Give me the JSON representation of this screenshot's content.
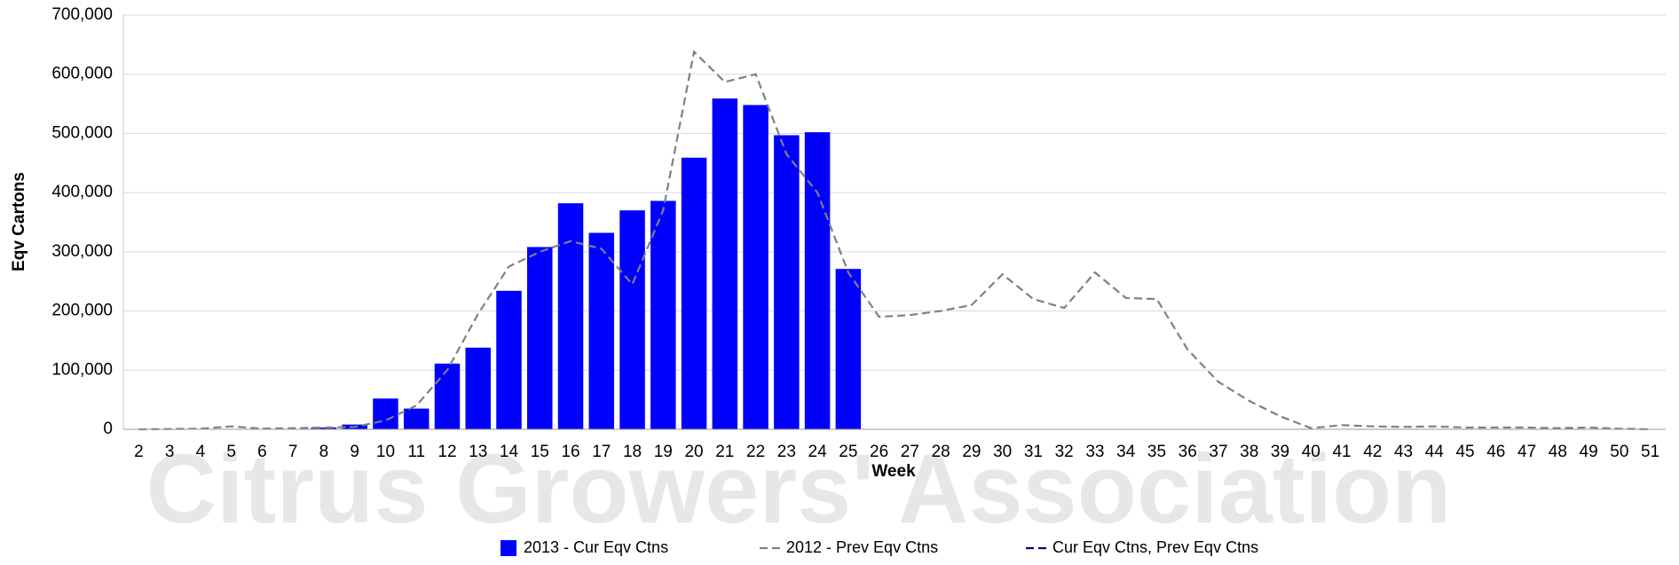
{
  "chart_data": {
    "type": "bar",
    "watermark": "Citrus Growers' Association",
    "x_label": "Week",
    "y_label": "Eqv Cartons",
    "categories": [
      "2",
      "3",
      "4",
      "5",
      "6",
      "7",
      "8",
      "9",
      "10",
      "11",
      "12",
      "13",
      "14",
      "15",
      "16",
      "17",
      "18",
      "19",
      "20",
      "21",
      "22",
      "23",
      "24",
      "25",
      "26",
      "27",
      "28",
      "29",
      "30",
      "31",
      "32",
      "33",
      "34",
      "35",
      "36",
      "37",
      "38",
      "39",
      "40",
      "41",
      "42",
      "43",
      "44",
      "45",
      "46",
      "47",
      "48",
      "49",
      "50",
      "51"
    ],
    "series": [
      {
        "name": "2013 - Cur Eqv Ctns",
        "type": "bar",
        "color": "#0000ff",
        "values": [
          0,
          0,
          0,
          0,
          0,
          0,
          3000,
          8000,
          52000,
          35000,
          111000,
          138000,
          234000,
          308000,
          382000,
          332000,
          370000,
          386000,
          459000,
          559000,
          548000,
          497000,
          502000,
          271000,
          null,
          null,
          null,
          null,
          null,
          null,
          null,
          null,
          null,
          null,
          null,
          null,
          null,
          null,
          null,
          null,
          null,
          null,
          null,
          null,
          null,
          null,
          null,
          null,
          null,
          null
        ]
      },
      {
        "name": "2012 - Prev Eqv Ctns",
        "type": "line",
        "color": "#808080",
        "values": [
          0,
          500,
          1000,
          5000,
          1000,
          2000,
          3000,
          4000,
          15000,
          40000,
          100000,
          195000,
          275000,
          300000,
          318000,
          305000,
          245000,
          370000,
          638000,
          587000,
          600000,
          465000,
          400000,
          265000,
          190000,
          193000,
          200000,
          210000,
          262000,
          220000,
          205000,
          265000,
          222000,
          220000,
          135000,
          80000,
          48000,
          22000,
          2000,
          7000,
          5000,
          4000,
          5000,
          3000,
          3000,
          3000,
          2000,
          3000,
          1000,
          0
        ]
      },
      {
        "name": "Cur Eqv Ctns, Prev Eqv Ctns",
        "type": "line",
        "color": "#000080",
        "values": [
          null,
          null,
          null,
          null,
          null,
          null,
          null,
          null,
          null,
          null,
          null,
          null,
          null,
          null,
          null,
          null,
          null,
          null,
          null,
          null,
          null,
          null,
          null,
          null,
          null,
          null,
          null,
          null,
          null,
          null,
          null,
          null,
          null,
          null,
          null,
          null,
          null,
          null,
          null,
          null,
          null,
          null,
          null,
          null,
          null,
          null,
          null,
          null,
          null,
          null
        ]
      }
    ],
    "ylim": [
      0,
      700000
    ],
    "yticks": [
      0,
      {
        "value": 100000,
        "label": "100,000"
      },
      {
        "value": 200000,
        "label": "200,000"
      },
      {
        "value": 300000,
        "label": "300,000"
      },
      {
        "value": 400000,
        "label": "400,000"
      },
      {
        "value": 500000,
        "label": "500,000"
      },
      {
        "value": 600000,
        "label": "600,000"
      },
      {
        "value": 700000,
        "label": "700,000"
      }
    ],
    "grid": true,
    "legend": "bottom"
  }
}
